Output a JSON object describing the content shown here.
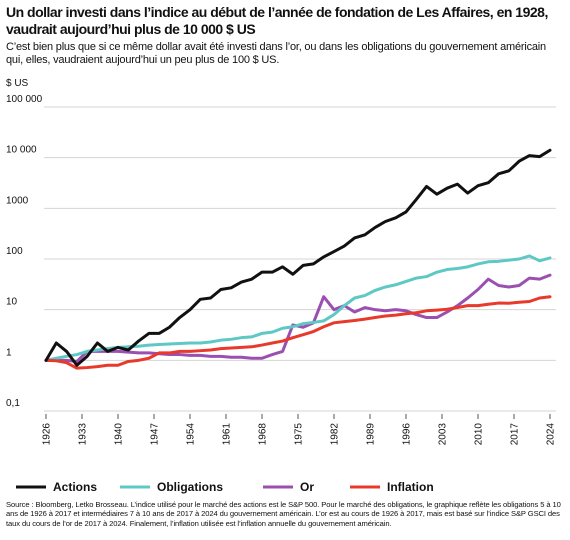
{
  "chart_data": {
    "type": "line",
    "title": "Un dollar investi dans l’indice au début de l’année de fondation de Les Affaires, en 1928, vaudrait aujourd’hui plus de 10 000 $ US",
    "subtitle": "C’est bien plus que si ce même dollar avait été investi dans l’or, ou dans les obligations du gouvernement américain qui, elles, vaudraient aujourd’hui un peu plus de 100 $ US.",
    "y_label": "$ US",
    "source": "Source : Bloomberg, Letko Brosseau. L’indice utilisé pour le marché des actions est le S&P 500. Pour le marché des obligations, le graphique reflète les obligations 5 à 10 ans de 1926 à 2017 et intermédiaires 7 à 10 ans de 2017 à 2024 du gouvernement américain. L’or est au cours de 1926 à 2017, mais est basé sur l’indice S&P GSCI des taux du cours de l’or de 2017 à 2024. Finalement, l’inflation utilisée est l’inflation annuelle du gouvernement américain.",
    "log_scale": true,
    "grid": true,
    "legend": "bottom",
    "xlim": [
      1926,
      2024
    ],
    "xticks": [
      1926,
      1933,
      1940,
      1947,
      1954,
      1961,
      1968,
      1975,
      1982,
      1989,
      1996,
      2003,
      2010,
      2017,
      2024
    ],
    "ylim": [
      0.1,
      100000
    ],
    "yticks": [
      {
        "value": 0.1,
        "label": "0,1"
      },
      1,
      10,
      100,
      1000,
      {
        "value": 10000,
        "label": "10 000"
      },
      {
        "value": 100000,
        "label": "100 000"
      }
    ],
    "x": [
      1926,
      1928,
      1930,
      1932,
      1934,
      1936,
      1938,
      1940,
      1942,
      1944,
      1946,
      1948,
      1950,
      1952,
      1954,
      1956,
      1958,
      1960,
      1962,
      1964,
      1966,
      1968,
      1970,
      1972,
      1974,
      1976,
      1978,
      1980,
      1982,
      1984,
      1986,
      1988,
      1990,
      1992,
      1994,
      1996,
      1998,
      2000,
      2002,
      2004,
      2006,
      2008,
      2010,
      2012,
      2014,
      2016,
      2018,
      2020,
      2022,
      2024
    ],
    "series": [
      {
        "name": "Actions",
        "color": "#111111",
        "values": [
          1,
          2.2,
          1.5,
          0.8,
          1.2,
          2.2,
          1.5,
          1.8,
          1.6,
          2.4,
          3.4,
          3.4,
          4.5,
          7,
          10,
          16,
          17,
          25,
          27,
          35,
          40,
          55,
          55,
          70,
          50,
          75,
          80,
          110,
          140,
          180,
          260,
          300,
          420,
          550,
          650,
          850,
          1500,
          2700,
          1900,
          2500,
          3000,
          2000,
          2800,
          3200,
          4800,
          5500,
          8500,
          11000,
          10500,
          14000
        ]
      },
      {
        "name": "Obligations",
        "color": "#5ec8c4",
        "values": [
          1,
          1.1,
          1.2,
          1.3,
          1.5,
          1.6,
          1.7,
          1.8,
          1.85,
          1.9,
          2,
          2.05,
          2.1,
          2.15,
          2.2,
          2.2,
          2.3,
          2.5,
          2.6,
          2.8,
          2.9,
          3.4,
          3.6,
          4.3,
          4.6,
          5.3,
          5.6,
          6,
          8,
          12,
          17,
          19,
          24,
          28,
          31,
          36,
          42,
          45,
          55,
          62,
          65,
          70,
          80,
          88,
          90,
          95,
          100,
          115,
          92,
          105
        ]
      },
      {
        "name": "Or",
        "color": "#9b4fb0",
        "values": [
          1,
          1,
          1,
          0.95,
          1.5,
          1.5,
          1.5,
          1.5,
          1.45,
          1.4,
          1.4,
          1.35,
          1.3,
          1.3,
          1.25,
          1.25,
          1.2,
          1.2,
          1.15,
          1.15,
          1.1,
          1.1,
          1.3,
          1.5,
          5,
          4.5,
          5.5,
          18,
          10,
          12,
          9,
          11,
          10,
          9.5,
          10,
          9.5,
          8,
          7,
          7,
          9,
          12,
          17,
          25,
          40,
          30,
          28,
          30,
          42,
          40,
          48
        ]
      },
      {
        "name": "Inflation",
        "color": "#e8392b",
        "values": [
          1,
          0.98,
          0.9,
          0.7,
          0.72,
          0.75,
          0.8,
          0.8,
          0.95,
          1,
          1.1,
          1.4,
          1.4,
          1.5,
          1.5,
          1.55,
          1.6,
          1.7,
          1.75,
          1.8,
          1.85,
          2,
          2.2,
          2.4,
          2.8,
          3.2,
          3.7,
          4.6,
          5.5,
          5.8,
          6.1,
          6.5,
          7,
          7.5,
          7.8,
          8.3,
          8.7,
          9.5,
          9.8,
          10.2,
          11,
          12,
          12,
          12.8,
          13.5,
          13.4,
          14,
          14.5,
          17,
          18
        ]
      }
    ]
  }
}
